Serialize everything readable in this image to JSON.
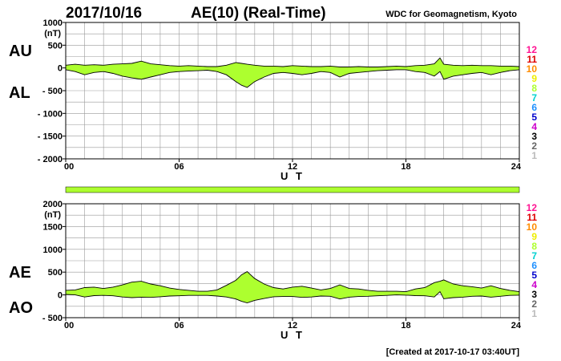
{
  "header": {
    "date": "2017/10/16",
    "title": "AE(10) (Real-Time)",
    "source": "WDC for Geomagnetism, Kyoto"
  },
  "footer": {
    "created": "[Created at 2017-10-17 03:40UT]"
  },
  "colors": {
    "fill": "#adff2f",
    "line": "#000000",
    "grid": "#999999"
  },
  "station_counts": [
    {
      "label": "12",
      "color": "#ff1493"
    },
    {
      "label": "11",
      "color": "#dd0000"
    },
    {
      "label": "10",
      "color": "#ff8c00"
    },
    {
      "label": "9",
      "color": "#eeee00"
    },
    {
      "label": "8",
      "color": "#adff2f"
    },
    {
      "label": "7",
      "color": "#00d0d0"
    },
    {
      "label": "6",
      "color": "#1e90ff"
    },
    {
      "label": "5",
      "color": "#0000cd"
    },
    {
      "label": "4",
      "color": "#cc00cc"
    },
    {
      "label": "3",
      "color": "#000000"
    },
    {
      "label": "2",
      "color": "#666666"
    },
    {
      "label": "1",
      "color": "#bbbbbb"
    }
  ],
  "chart_data": [
    {
      "type": "area",
      "id": "au-al",
      "label_upper": "AU",
      "label_lower": "AL",
      "unit": "(nT)",
      "xlabel": "U T",
      "x_ticks": [
        "00",
        "06",
        "12",
        "18",
        "24"
      ],
      "xlim": [
        0,
        24
      ],
      "ylim": [
        -2000,
        1000
      ],
      "y_ticks": [
        {
          "value": 1000,
          "label": "1000"
        },
        {
          "value": 500,
          "label": "500"
        },
        {
          "value": 0,
          "label": "0"
        },
        {
          "value": -500,
          "label": "- 500"
        },
        {
          "value": -1000,
          "label": "- 1000"
        },
        {
          "value": -1500,
          "label": "- 1500"
        },
        {
          "value": -2000,
          "label": "- 2000"
        }
      ],
      "grid": true,
      "x": [
        0,
        0.5,
        1,
        1.5,
        2,
        2.5,
        3,
        3.5,
        4,
        4.5,
        5,
        5.5,
        6,
        6.5,
        7,
        7.5,
        8,
        8.5,
        9,
        9.3,
        9.6,
        10,
        10.5,
        11,
        11.5,
        12,
        12.5,
        13,
        13.5,
        14,
        14.5,
        15,
        15.5,
        16,
        16.5,
        17,
        17.5,
        18,
        18.5,
        19,
        19.5,
        19.8,
        20,
        20.5,
        21,
        21.5,
        22,
        22.5,
        23,
        23.5,
        24
      ],
      "series": [
        {
          "name": "AU",
          "values": [
            60,
            80,
            60,
            70,
            60,
            80,
            90,
            100,
            150,
            90,
            70,
            50,
            40,
            50,
            40,
            30,
            30,
            60,
            120,
            100,
            80,
            60,
            40,
            40,
            30,
            50,
            40,
            30,
            30,
            40,
            20,
            20,
            30,
            20,
            20,
            30,
            40,
            30,
            50,
            60,
            90,
            220,
            80,
            60,
            50,
            60,
            50,
            50,
            40,
            40,
            30
          ]
        },
        {
          "name": "AL",
          "values": [
            -40,
            -80,
            -150,
            -100,
            -80,
            -120,
            -180,
            -220,
            -250,
            -200,
            -150,
            -100,
            -80,
            -70,
            -60,
            -50,
            -80,
            -150,
            -300,
            -380,
            -430,
            -300,
            -200,
            -120,
            -100,
            -120,
            -150,
            -120,
            -80,
            -100,
            -200,
            -120,
            -100,
            -80,
            -60,
            -50,
            -40,
            -40,
            -80,
            -100,
            -180,
            -80,
            -250,
            -180,
            -150,
            -120,
            -100,
            -150,
            -100,
            -60,
            -40
          ]
        }
      ]
    },
    {
      "type": "area",
      "id": "ae-ao",
      "label_upper": "AE",
      "label_lower": "AO",
      "unit": "(nT)",
      "xlabel": "U T",
      "x_ticks": [
        "00",
        "06",
        "12",
        "18",
        "24"
      ],
      "xlim": [
        0,
        24
      ],
      "ylim": [
        -500,
        2000
      ],
      "y_ticks": [
        {
          "value": 2000,
          "label": "2000"
        },
        {
          "value": 1500,
          "label": "1500"
        },
        {
          "value": 1000,
          "label": "1000"
        },
        {
          "value": 500,
          "label": "500"
        },
        {
          "value": 0,
          "label": "0"
        },
        {
          "value": -500,
          "label": "- 500"
        }
      ],
      "grid": true,
      "x": [
        0,
        0.5,
        1,
        1.5,
        2,
        2.5,
        3,
        3.5,
        4,
        4.5,
        5,
        5.5,
        6,
        6.5,
        7,
        7.5,
        8,
        8.5,
        9,
        9.3,
        9.6,
        10,
        10.5,
        11,
        11.5,
        12,
        12.5,
        13,
        13.5,
        14,
        14.5,
        15,
        15.5,
        16,
        16.5,
        17,
        17.5,
        18,
        18.5,
        19,
        19.5,
        19.8,
        20,
        20.5,
        21,
        21.5,
        22,
        22.5,
        23,
        23.5,
        24
      ],
      "series": [
        {
          "name": "AE",
          "values": [
            100,
            110,
            160,
            170,
            140,
            170,
            220,
            280,
            300,
            240,
            200,
            150,
            120,
            100,
            80,
            80,
            110,
            210,
            320,
            440,
            510,
            360,
            240,
            160,
            130,
            170,
            190,
            150,
            110,
            140,
            220,
            140,
            130,
            100,
            80,
            80,
            80,
            70,
            130,
            160,
            270,
            300,
            330,
            240,
            200,
            180,
            150,
            200,
            140,
            100,
            70
          ]
        },
        {
          "name": "AO",
          "values": [
            10,
            0,
            -45,
            -15,
            -10,
            -20,
            -45,
            -60,
            -50,
            -55,
            -40,
            -25,
            -20,
            -10,
            -10,
            -10,
            -25,
            -45,
            -90,
            -140,
            -175,
            -120,
            -80,
            -40,
            -35,
            -35,
            -55,
            -45,
            -25,
            -30,
            -90,
            -50,
            -35,
            -30,
            -20,
            -10,
            0,
            -5,
            -15,
            -20,
            -45,
            70,
            -85,
            -60,
            -50,
            -30,
            -25,
            -50,
            -30,
            -10,
            -5
          ]
        }
      ]
    }
  ]
}
